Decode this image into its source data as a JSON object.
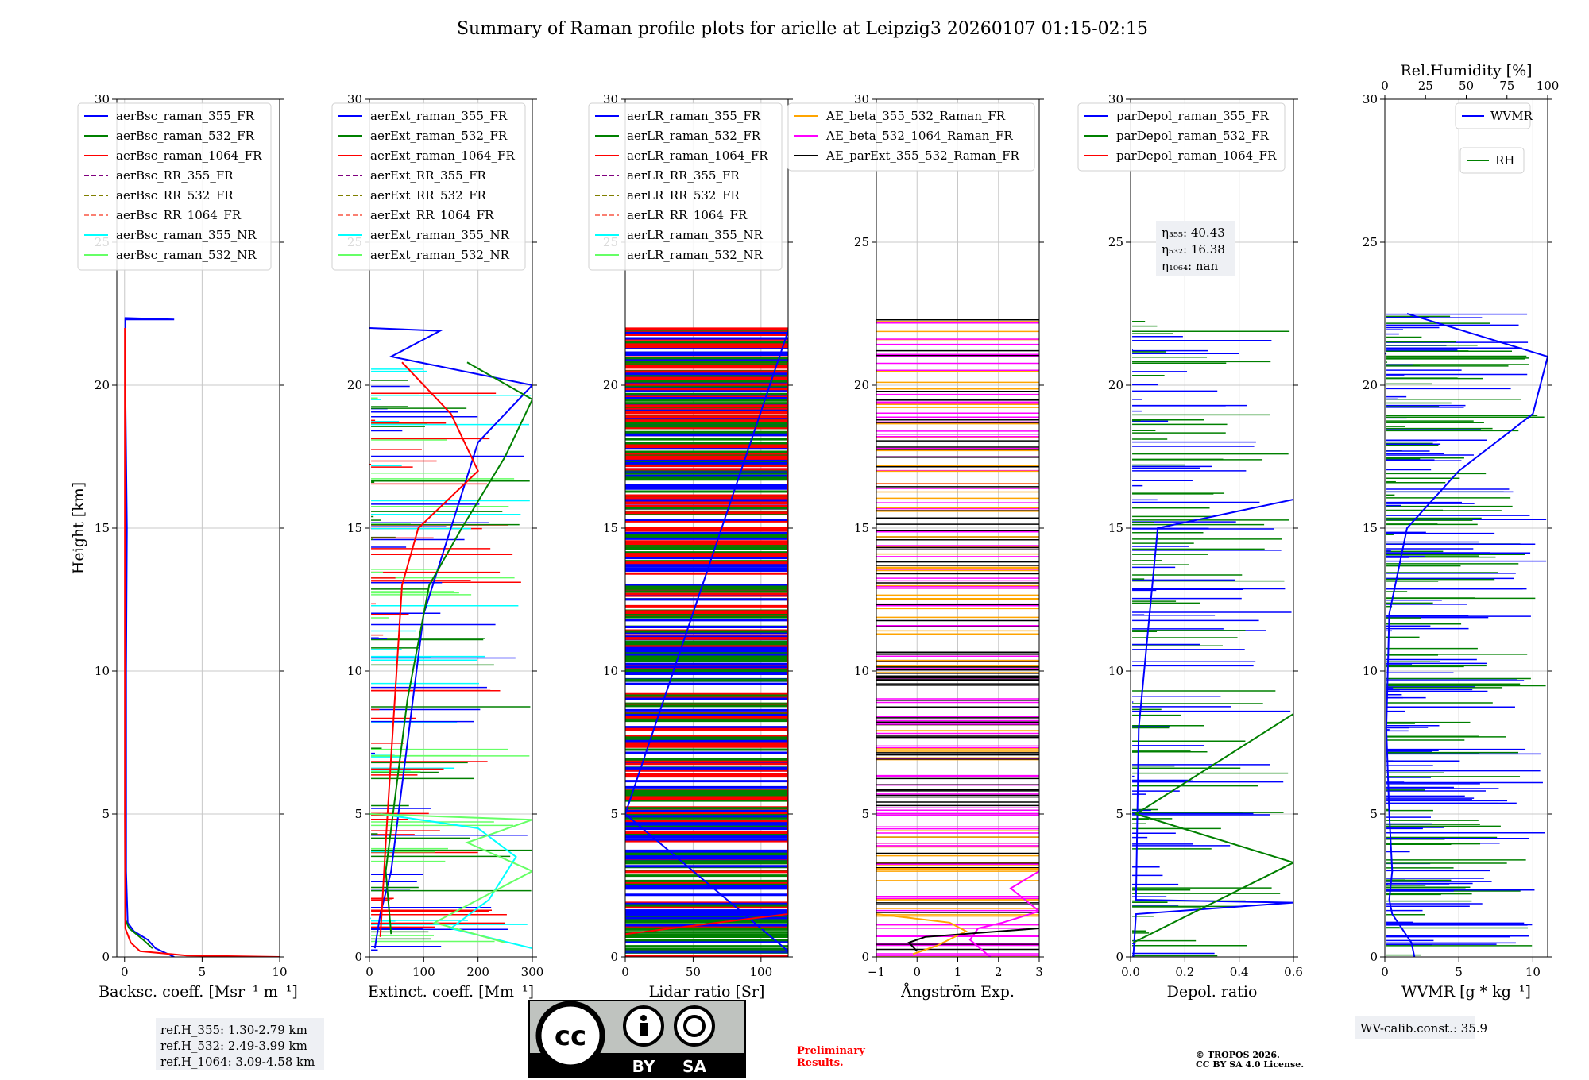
{
  "figure_title": "Summary of Raman profile plots for arielle at Leipzig3 20260107 01:15-02:15",
  "colors": {
    "blue": "#0000ff",
    "green": "#008000",
    "red": "#ff0000",
    "purple": "#800080",
    "olive": "#808000",
    "salmon": "#fa8072",
    "cyan": "#00ffff",
    "lightgreen": "#66ff66",
    "orange": "#ffa500",
    "magenta": "#ff00ff",
    "black": "#000000",
    "tropos_red": "#ff0000"
  },
  "chart_data": [
    {
      "type": "line",
      "id": "bsc",
      "xlabel": "Backsc. coeff. [Msr⁻¹ m⁻¹]",
      "ylabel": "Height [km]",
      "xlim": [
        -0.5,
        10
      ],
      "ylim": [
        0,
        30
      ],
      "xticks": [
        0,
        5,
        10
      ],
      "xtick_labels": [
        "0",
        "5",
        "10"
      ],
      "yticks": [
        0,
        5,
        10,
        15,
        20,
        25,
        30
      ],
      "ytick_labels": [
        "0",
        "5",
        "10",
        "15",
        "20",
        "25",
        "30"
      ],
      "legend": [
        "aerBsc_raman_355_FR",
        "aerBsc_raman_532_FR",
        "aerBsc_raman_1064_FR",
        "aerBsc_RR_355_FR",
        "aerBsc_RR_532_FR",
        "aerBsc_RR_1064_FR",
        "aerBsc_raman_355_NR",
        "aerBsc_raman_532_NR"
      ],
      "series": [
        {
          "name": "aerBsc_raman_355_FR",
          "color": "blue",
          "points": [
            [
              3.2,
              0
            ],
            [
              2.0,
              0.3
            ],
            [
              1.5,
              0.6
            ],
            [
              0.6,
              0.9
            ],
            [
              0.2,
              1.2
            ],
            [
              0.1,
              3
            ],
            [
              0.1,
              10
            ],
            [
              0.15,
              15
            ],
            [
              0.05,
              20
            ],
            [
              0.05,
              22.3
            ],
            [
              3.2,
              22.3
            ],
            [
              0,
              22.35
            ]
          ]
        },
        {
          "name": "aerBsc_raman_532_FR",
          "color": "green",
          "points": [
            [
              1.8,
              0.3
            ],
            [
              1.2,
              0.6
            ],
            [
              0.3,
              1.0
            ],
            [
              0.05,
              1.3
            ],
            [
              0.05,
              10
            ],
            [
              0.05,
              22
            ]
          ]
        },
        {
          "name": "aerBsc_raman_1064_FR",
          "color": "red",
          "points": [
            [
              10,
              0
            ],
            [
              4,
              0.05
            ],
            [
              1.0,
              0.2
            ],
            [
              0.4,
              0.5
            ],
            [
              0.05,
              1.0
            ],
            [
              0.02,
              5
            ],
            [
              0.02,
              22
            ]
          ]
        }
      ],
      "notes": [
        "ref.H_355: 1.30-2.79 km",
        "ref.H_532: 2.49-3.99 km",
        "ref.H_1064: 3.09-4.58 km"
      ]
    },
    {
      "type": "line",
      "id": "ext",
      "xlabel": "Extinct. coeff. [Mm⁻¹]",
      "xlim": [
        0,
        300
      ],
      "ylim": [
        0,
        30
      ],
      "xticks": [
        0,
        100,
        200,
        300
      ],
      "xtick_labels": [
        "0",
        "100",
        "200",
        "300"
      ],
      "yticks": [
        0,
        5,
        10,
        15,
        20,
        25,
        30
      ],
      "ytick_labels": [
        "0",
        "5",
        "10",
        "15",
        "20",
        "25",
        "30"
      ],
      "legend": [
        "aerExt_raman_355_FR",
        "aerExt_raman_532_FR",
        "aerExt_raman_1064_FR",
        "aerExt_RR_355_FR",
        "aerExt_RR_532_FR",
        "aerExt_RR_1064_FR",
        "aerExt_raman_355_NR",
        "aerExt_raman_532_NR"
      ],
      "series": [
        {
          "name": "aerExt_raman_355_FR",
          "color": "blue",
          "points": [
            [
              10,
              0.3
            ],
            [
              20,
              1.5
            ],
            [
              40,
              3
            ],
            [
              60,
              6
            ],
            [
              80,
              9
            ],
            [
              100,
              12
            ],
            [
              150,
              15
            ],
            [
              200,
              18
            ],
            [
              300,
              20
            ],
            [
              40,
              21
            ],
            [
              130,
              21.9
            ],
            [
              0,
              22
            ]
          ]
        },
        {
          "name": "aerExt_raman_532_FR",
          "color": "green",
          "points": [
            [
              40,
              0.8
            ],
            [
              30,
              3
            ],
            [
              50,
              6
            ],
            [
              70,
              9
            ],
            [
              110,
              13
            ],
            [
              170,
              15
            ],
            [
              250,
              17.5
            ],
            [
              300,
              19.5
            ],
            [
              180,
              20.8
            ]
          ]
        },
        {
          "name": "aerExt_raman_1064_FR",
          "color": "red",
          "points": [
            [
              20,
              0.7
            ],
            [
              30,
              4
            ],
            [
              40,
              7
            ],
            [
              50,
              10
            ],
            [
              60,
              13
            ],
            [
              90,
              15
            ],
            [
              200,
              17
            ],
            [
              150,
              19
            ],
            [
              60,
              20.8
            ]
          ]
        },
        {
          "name": "aerExt_raman_355_NR",
          "color": "cyan",
          "points": [
            [
              300,
              0.3
            ],
            [
              150,
              1
            ],
            [
              220,
              2
            ],
            [
              270,
              3.5
            ],
            [
              200,
              4.5
            ],
            [
              20,
              5
            ]
          ]
        },
        {
          "name": "aerExt_raman_532_NR",
          "color": "lightgreen",
          "points": [
            [
              250,
              0.5
            ],
            [
              120,
              1.2
            ],
            [
              300,
              3
            ],
            [
              180,
              4
            ],
            [
              300,
              4.8
            ],
            [
              0,
              5
            ]
          ]
        }
      ]
    },
    {
      "type": "line",
      "id": "lr",
      "xlabel": "Lidar ratio [Sr]",
      "xlim": [
        0,
        120
      ],
      "ylim": [
        0,
        30
      ],
      "xticks": [
        0,
        50,
        100
      ],
      "xtick_labels": [
        "0",
        "50",
        "100"
      ],
      "yticks": [
        0,
        5,
        10,
        15,
        20,
        25,
        30
      ],
      "ytick_labels": [
        "0",
        "5",
        "10",
        "15",
        "20",
        "25",
        "30"
      ],
      "legend": [
        "aerLR_raman_355_FR",
        "aerLR_raman_532_FR",
        "aerLR_raman_1064_FR",
        "aerLR_RR_355_FR",
        "aerLR_RR_532_FR",
        "aerLR_RR_1064_FR",
        "aerLR_raman_355_NR",
        "aerLR_raman_532_NR"
      ],
      "series": [
        {
          "name": "aerLR_raman_355_FR",
          "color": "blue",
          "points": [
            [
              0,
              0.2
            ],
            [
              120,
              0.2
            ],
            [
              0,
              5
            ],
            [
              120,
              21.9
            ]
          ]
        },
        {
          "name": "aerLR_raman_532_FR",
          "color": "green",
          "points": [
            [
              0,
              1
            ],
            [
              120,
              1
            ],
            [
              120,
              4
            ]
          ]
        },
        {
          "name": "aerLR_raman_1064_FR",
          "color": "red",
          "points": [
            [
              0,
              0.8
            ],
            [
              120,
              1.5
            ],
            [
              120,
              20.8
            ]
          ]
        }
      ]
    },
    {
      "type": "line",
      "id": "ae",
      "xlabel": "Ångström Exp.",
      "xlim": [
        -1,
        3
      ],
      "ylim": [
        0,
        30
      ],
      "xticks": [
        -1,
        0,
        1,
        2,
        3
      ],
      "xtick_labels": [
        "−1",
        "0",
        "1",
        "2",
        "3"
      ],
      "yticks": [
        0,
        5,
        10,
        15,
        20,
        25,
        30
      ],
      "ytick_labels": [
        "0",
        "5",
        "10",
        "15",
        "20",
        "25",
        "30"
      ],
      "legend": [
        "AE_beta_355_532_Raman_FR",
        "AE_beta_532_1064_Raman_FR",
        "AE_parExt_355_532_Raman_FR"
      ],
      "series": [
        {
          "name": "AE_beta_355_532_Raman_FR",
          "color": "orange",
          "points": [
            [
              -0.1,
              0.1
            ],
            [
              0.5,
              0.4
            ],
            [
              1.2,
              0.9
            ],
            [
              0.8,
              1.2
            ],
            [
              -1,
              1.5
            ]
          ]
        },
        {
          "name": "AE_beta_532_1064_Raman_FR",
          "color": "magenta",
          "points": [
            [
              1.8,
              0
            ],
            [
              1.3,
              0.6
            ],
            [
              1.5,
              1
            ],
            [
              2.1,
              1.2
            ],
            [
              3,
              1.6
            ],
            [
              2.3,
              2.4
            ],
            [
              3,
              3
            ]
          ]
        },
        {
          "name": "AE_parExt_355_532_Raman_FR",
          "color": "black",
          "points": [
            [
              0,
              0.2
            ],
            [
              -0.2,
              0.5
            ],
            [
              0.2,
              0.7
            ],
            [
              3,
              1
            ]
          ]
        }
      ]
    },
    {
      "type": "line",
      "id": "depol",
      "xlabel": "Depol. ratio",
      "xlim": [
        0,
        0.6
      ],
      "ylim": [
        0,
        30
      ],
      "xticks": [
        0,
        0.2,
        0.4,
        0.6
      ],
      "xtick_labels": [
        "0.0",
        "0.2",
        "0.4",
        "0.6"
      ],
      "yticks": [
        0,
        5,
        10,
        15,
        20,
        25,
        30
      ],
      "ytick_labels": [
        "0",
        "5",
        "10",
        "15",
        "20",
        "25",
        "30"
      ],
      "legend": [
        "parDepol_raman_355_FR",
        "parDepol_raman_532_FR",
        "parDepol_raman_1064_FR"
      ],
      "series": [
        {
          "name": "parDepol_raman_355_FR",
          "color": "blue",
          "points": [
            [
              0.01,
              0
            ],
            [
              0.02,
              1.5
            ],
            [
              0.6,
              1.9
            ],
            [
              0.02,
              2
            ],
            [
              0.03,
              8
            ],
            [
              0.1,
              15
            ],
            [
              0.6,
              16
            ],
            [
              0.6,
              22
            ]
          ]
        },
        {
          "name": "parDepol_raman_532_FR",
          "color": "green",
          "points": [
            [
              0.01,
              0.5
            ],
            [
              0.6,
              3.3
            ],
            [
              0.02,
              5
            ],
            [
              0.6,
              8.5
            ],
            [
              0.6,
              13
            ],
            [
              0.6,
              19
            ],
            [
              0.6,
              21
            ]
          ]
        }
      ],
      "eta": [
        "η₃₅₅: 40.43",
        "η₅₃₂: 16.38",
        "η₁₀₆₄: nan"
      ]
    },
    {
      "type": "line",
      "id": "wv",
      "xlabel": "WVMR [g * kg⁻¹]",
      "xlim": [
        0,
        11
      ],
      "ylim": [
        0,
        30
      ],
      "xticks": [
        0,
        5,
        10
      ],
      "xtick_labels": [
        "0",
        "5",
        "10"
      ],
      "yticks": [
        0,
        5,
        10,
        15,
        20,
        25,
        30
      ],
      "ytick_labels": [
        "0",
        "5",
        "10",
        "15",
        "20",
        "25",
        "30"
      ],
      "top_xlabel": "Rel.Humidity [%]",
      "top_xlim": [
        0,
        100
      ],
      "top_xticks": [
        0,
        25,
        50,
        75,
        100
      ],
      "top_xtick_labels": [
        "0",
        "25",
        "50",
        "75",
        "100"
      ],
      "legend": [
        "WVMR",
        "RH"
      ],
      "series": [
        {
          "name": "WVMR",
          "color": "blue",
          "points": [
            [
              2,
              0
            ],
            [
              1.8,
              0.5
            ],
            [
              0.5,
              1.5
            ],
            [
              0.3,
              2
            ],
            [
              0.5,
              3
            ],
            [
              0.3,
              5
            ],
            [
              0.1,
              8
            ],
            [
              0.3,
              12
            ],
            [
              1.5,
              15
            ],
            [
              5,
              17
            ],
            [
              10,
              19
            ],
            [
              11,
              21
            ],
            [
              1.5,
              22.5
            ]
          ]
        },
        {
          "name": "RH",
          "color": "green",
          "points": [
            [
              90,
              0.6
            ],
            [
              60,
              1
            ],
            [
              30,
              1.5
            ],
            [
              80,
              2.5
            ],
            [
              60,
              4
            ],
            [
              100,
              6
            ],
            [
              100,
              7
            ],
            [
              70,
              8
            ],
            [
              100,
              9.5
            ]
          ]
        }
      ],
      "notes": [
        "WV-calib.const.: 35.9"
      ]
    }
  ],
  "footer": {
    "cc_badge": {
      "cc": "cc",
      "by": "BY",
      "sa": "SA"
    },
    "preliminary": [
      "Preliminary",
      "Results."
    ],
    "copyright": [
      "© TROPOS 2026.",
      "CC BY SA 4.0 License."
    ]
  }
}
